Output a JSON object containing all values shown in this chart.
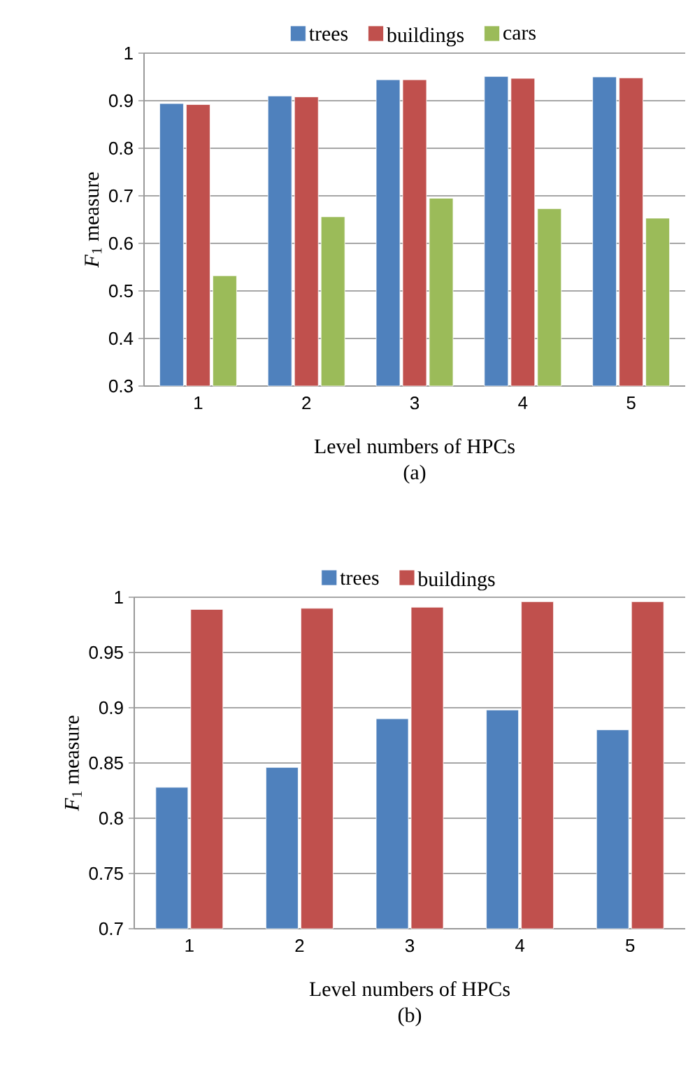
{
  "chart_data": [
    {
      "type": "bar",
      "categories": [
        "1",
        "2",
        "3",
        "4",
        "5"
      ],
      "ylabel": "*F*$_{1}$ measure",
      "xlabel": "Level numbers of HPCs",
      "annotations": [
        "(a)"
      ],
      "ylim": [
        0.3,
        1
      ],
      "yticks": [
        0.3,
        0.4,
        0.5,
        0.6,
        0.7,
        0.8,
        0.9,
        1
      ],
      "grid": "y",
      "legend": "top",
      "series": [
        {
          "name": "trees",
          "color": "#4f81bd",
          "values": [
            0.894,
            0.91,
            0.944,
            0.951,
            0.95
          ]
        },
        {
          "name": "buildings",
          "color": "#c0504d",
          "values": [
            0.892,
            0.908,
            0.944,
            0.947,
            0.948
          ]
        },
        {
          "name": "cars",
          "color": "#9bbb59",
          "values": [
            0.532,
            0.656,
            0.695,
            0.673,
            0.653
          ]
        }
      ]
    },
    {
      "type": "bar",
      "categories": [
        "1",
        "2",
        "3",
        "4",
        "5"
      ],
      "ylabel": "*F*$_{1}$ measure",
      "xlabel": "Level numbers of HPCs",
      "annotations": [
        "(b)"
      ],
      "ylim": [
        0.7,
        1
      ],
      "yticks": [
        0.7,
        0.75,
        0.8,
        0.85,
        0.9,
        0.95,
        1
      ],
      "grid": "y",
      "legend": "top",
      "series": [
        {
          "name": "trees",
          "color": "#4f81bd",
          "values": [
            0.828,
            0.846,
            0.89,
            0.898,
            0.88
          ]
        },
        {
          "name": "buildings",
          "color": "#c0504d",
          "values": [
            0.989,
            0.99,
            0.991,
            0.996,
            0.996
          ]
        }
      ]
    }
  ]
}
